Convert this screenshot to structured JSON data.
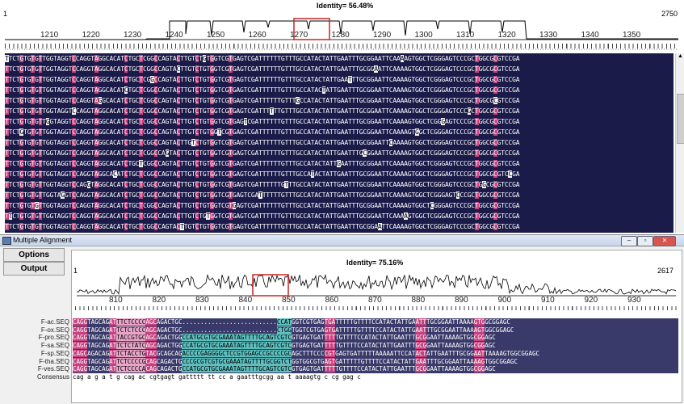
{
  "top": {
    "identity_label": "Identity= 56.48%",
    "start_pos": "1",
    "end_pos": "2750",
    "ruler_ticks": [
      "1210",
      "1220",
      "1230",
      "1240",
      "1250",
      "1260",
      "1270",
      "1280",
      "1290",
      "1300",
      "1310",
      "1320",
      "1330",
      "1340",
      "1350"
    ],
    "rows": 17
  },
  "bottom": {
    "window_title": "Multiple Alignment",
    "options_label": "Options",
    "output_label": "Output",
    "identity_label": "Identity= 75.16%",
    "start_pos": "1",
    "end_pos": "2617",
    "ruler_ticks": [
      "810",
      "820",
      "830",
      "840",
      "850",
      "860",
      "870",
      "880",
      "890",
      "900",
      "910",
      "920",
      "930"
    ],
    "sequences": [
      {
        "name": "F-ac.SEQ",
        "seq": "CAGGTAGCAGATTTCTCCCCAGCAGACTGC..........................CCATGGTCGTGAGTGATTTTTGTTTTCCATACTATTGAATTTGCGGAATTAAAAGTGGCGGAGC"
      },
      {
        "name": "F-ox.SEQ",
        "seq": "CAGGTAGCAGATTCTCTCCCAGCAGACTGC..........................CTGGTGGTCGTGAGTGATTTTTGTTTTCCATACTATTGAATTTGCGGAATTAAAAGTGGCGGAGC"
      },
      {
        "name": "F-pro.SEQ",
        "seq": "CAGGTAGCAGATTACCGTGCAGCAGACTGGCCATGCGTGCGAAATAGTTTTGCAGTCGTCGTGAGTGATTTTTGTTTTCCATACTATTGAATTTGCGGAATTAAAAGTGGCGGAGC"
      },
      {
        "name": "F-sa.SEQ",
        "seq": "CAGGTAGCAGATTCTCTATCAGCAGACTGGCCATGCGTGCGAAATAGTTTTGCAGTCGTCGTGAGTGATTTTTGTTTTCCATACTATTGAATTTGCGGAATTAAAAGTGGCGGAGC"
      },
      {
        "name": "F-sp.SEQ",
        "seq": "CAGCAGACAGATTCTACCTGTACGCAGCAGACCCCGAGGGGCTCCGTGGAGCCGCCCCGCAGCTTTCCCCGTGAGTGATTTTTAAAAATTCCATACTATTGAATTTGCGGAATTAAAAGTGGCGGAGC"
      },
      {
        "name": "F-tha.SEQ",
        "seq": "CAGGTAGCAGATTCTCCCCGCAGCAGACTGCCCGCGTCGTGCGAAATAGTTTTGCGGTCTGGTGGCGTGAGTGATTTTTGTTTTCCATACTATTGAATTTGCGGAATTAAAAGTGGCGGAGC"
      },
      {
        "name": "F-ves.SEQ",
        "seq": "CAGGTAGCAGATTCTCCCCACAGCAGACTGCCATGCGTGCGAAATAGTTTTGCAGTCGTCGTGAGTGATTTTTGTTTTCCATACTATTGAATTTGCGGAATTAAAAGTGGCGGAGC"
      },
      {
        "name": "Consensus",
        "seq": "cag     a g a  t           g cag ac                           cgtgagt gattttt    tt  cc  a         gaatttgcgg aa t aaaagtg c cg gag c"
      }
    ]
  }
}
